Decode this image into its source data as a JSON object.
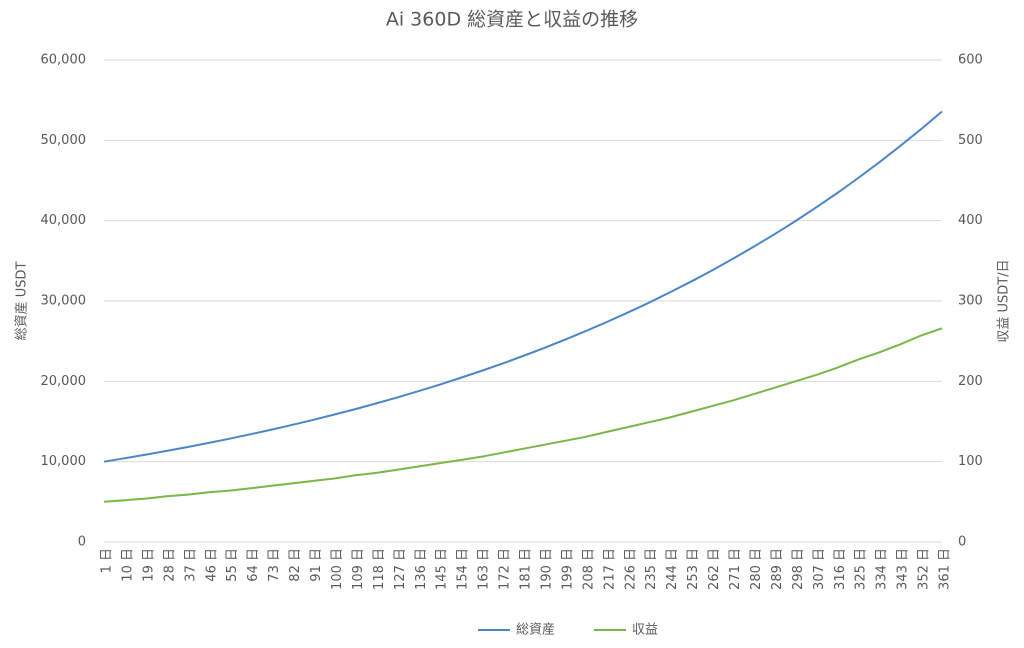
{
  "chart_data": {
    "type": "line",
    "title": "Ai 360D 総資産と収益の推移",
    "y_label": "総資産 USDT",
    "y2_label": "収益 USDT/日",
    "categories": [
      "1 日",
      "10 日",
      "19 日",
      "28 日",
      "37 日",
      "46 日",
      "55 日",
      "64 日",
      "73 日",
      "82 日",
      "91 日",
      "100 日",
      "109 日",
      "118 日",
      "127 日",
      "136 日",
      "145 日",
      "154 日",
      "163 日",
      "172 日",
      "181 日",
      "190 日",
      "199 日",
      "208 日",
      "217 日",
      "226 日",
      "235 日",
      "244 日",
      "253 日",
      "262 日",
      "271 日",
      "280 日",
      "289 日",
      "298 日",
      "307 日",
      "316 日",
      "325 日",
      "334 日",
      "343 日",
      "352 日",
      "361 日"
    ],
    "series": [
      {
        "name": "総資産",
        "color": "#4a86c8",
        "axis": "y",
        "values": [
          10000,
          10429,
          10876,
          11342,
          11828,
          12335,
          12864,
          13415,
          13990,
          14590,
          15215,
          15867,
          16547,
          17256,
          17996,
          18767,
          19572,
          20411,
          21286,
          22198,
          23150,
          24142,
          25177,
          26256,
          27382,
          28555,
          29779,
          31056,
          32387,
          33775,
          35223,
          36733,
          38307,
          39949,
          41662,
          43447,
          45310,
          47252,
          49277,
          51389,
          53592
        ]
      },
      {
        "name": "収益",
        "color": "#7ab648",
        "axis": "y2",
        "values": [
          50,
          52,
          54,
          57,
          59,
          62,
          64,
          67,
          70,
          73,
          76,
          79,
          83,
          86,
          90,
          94,
          98,
          102,
          106,
          111,
          116,
          121,
          126,
          131,
          137,
          143,
          149,
          155,
          162,
          169,
          176,
          184,
          192,
          200,
          208,
          217,
          227,
          236,
          246,
          257,
          266
        ]
      }
    ],
    "ylim": [
      0,
      60000
    ],
    "yticks": [
      0,
      {
        "value": 10000,
        "label": "10,000"
      },
      {
        "value": 20000,
        "label": "20,000"
      },
      {
        "value": 30000,
        "label": "30,000"
      },
      {
        "value": 40000,
        "label": "40,000"
      },
      {
        "value": 50000,
        "label": "50,000"
      },
      {
        "value": 60000,
        "label": "60,000"
      }
    ],
    "y2lim": [
      0,
      600
    ],
    "y2ticks": [
      0,
      100,
      200,
      300,
      400,
      500,
      600
    ],
    "grid": true,
    "legend": "bottom"
  }
}
